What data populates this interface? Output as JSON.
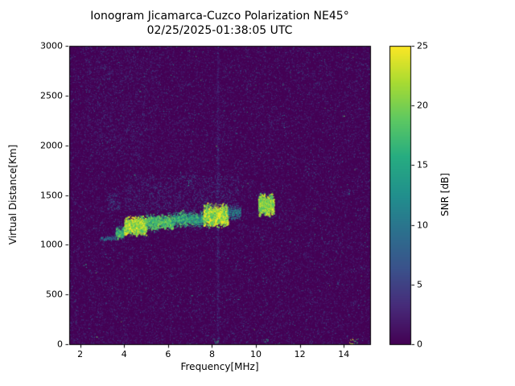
{
  "chart_data": {
    "type": "heatmap",
    "title": "Ionogram Jicamarca-Cuzco Polarization NE45°",
    "subtitle": "02/25/2025-01:38:05 UTC",
    "xlabel": "Frequency[MHz]",
    "ylabel": "Virtual Distance[Km]",
    "xlim": [
      1.5,
      15.2
    ],
    "ylim": [
      0,
      3000
    ],
    "xticks": [
      2,
      4,
      6,
      8,
      10,
      12,
      14
    ],
    "yticks": [
      0,
      500,
      1000,
      1500,
      2000,
      2500,
      3000
    ],
    "colormap": "viridis",
    "background_snr_db": 0,
    "background_color": "#440154",
    "colorbar": {
      "label": "SNR [dB]",
      "min": 0,
      "max": 25,
      "ticks": [
        0,
        5,
        10,
        15,
        20,
        25
      ]
    },
    "noise": {
      "speckle_count": 48000,
      "mean_snr_db": 1.8,
      "max_snr_db": 8,
      "bright_speck_count": 900,
      "rare_speck_count": 70
    },
    "interference_line_mhz": 8.25,
    "echo_trace_segments": [
      {
        "f0": 2.9,
        "f1": 3.6,
        "alt_km": 1065,
        "spread_km": 20,
        "snr_db": 9,
        "density": 0.55
      },
      {
        "f0": 3.6,
        "f1": 4.0,
        "alt_km": 1120,
        "spread_km": 55,
        "snr_db": 15,
        "density": 0.8
      },
      {
        "f0": 4.0,
        "f1": 5.0,
        "alt_km": 1190,
        "spread_km": 80,
        "snr_db": 21,
        "density": 1.0
      },
      {
        "f0": 5.0,
        "f1": 6.2,
        "alt_km": 1230,
        "spread_km": 70,
        "snr_db": 16,
        "density": 0.8
      },
      {
        "f0": 6.2,
        "f1": 7.6,
        "alt_km": 1260,
        "spread_km": 70,
        "snr_db": 14,
        "density": 0.7
      },
      {
        "f0": 7.6,
        "f1": 8.7,
        "alt_km": 1300,
        "spread_km": 95,
        "snr_db": 22,
        "density": 1.0
      },
      {
        "f0": 8.7,
        "f1": 9.3,
        "alt_km": 1320,
        "spread_km": 60,
        "snr_db": 11,
        "density": 0.5
      },
      {
        "f0": 10.1,
        "f1": 10.8,
        "alt_km": 1400,
        "spread_km": 95,
        "snr_db": 20,
        "density": 0.9
      }
    ],
    "diffuse_regions": [
      {
        "f0": 3.2,
        "f1": 3.8,
        "alt0_km": 1350,
        "alt1_km": 1520,
        "snr_db": 6,
        "density": 0.12
      },
      {
        "f0": 4.0,
        "f1": 9.2,
        "alt0_km": 1350,
        "alt1_km": 1700,
        "snr_db": 5,
        "density": 0.07
      },
      {
        "f0": 2.2,
        "f1": 5.5,
        "alt0_km": 1800,
        "alt1_km": 3000,
        "snr_db": 3,
        "density": 0.04
      }
    ],
    "bottom_markers": [
      {
        "f_mhz": 8.2,
        "snr_db": 16
      },
      {
        "f_mhz": 10.45,
        "snr_db": 14
      },
      {
        "f_mhz": 14.35,
        "snr_db": 22
      },
      {
        "f_mhz": 14.55,
        "snr_db": 18
      }
    ]
  }
}
